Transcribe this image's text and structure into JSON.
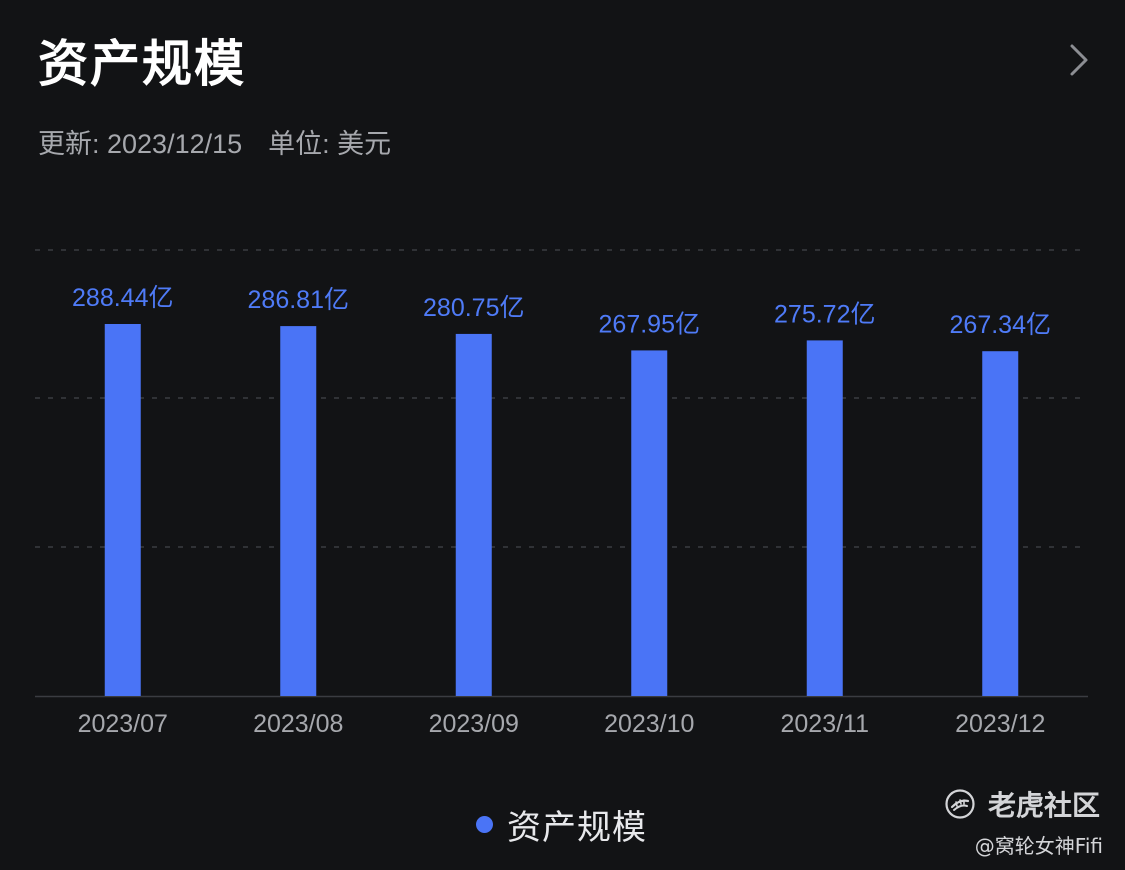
{
  "header": {
    "title": "资产规模",
    "update_label": "更新: 2023/12/15",
    "unit_label": "单位: 美元",
    "chevron_icon": "chevron-right-icon"
  },
  "colors": {
    "background": "#121315",
    "bar": "#4a74f6",
    "value_label": "#4f7bf7",
    "tick_label": "#a6a8ad",
    "gridline": "#3a3c41"
  },
  "chart_data": {
    "type": "bar",
    "title": "资产规模",
    "categories": [
      "2023/07",
      "2023/08",
      "2023/09",
      "2023/10",
      "2023/11",
      "2023/12"
    ],
    "values": [
      288.44,
      286.81,
      280.75,
      267.95,
      275.72,
      267.34
    ],
    "value_labels": [
      "288.44亿",
      "286.81亿",
      "280.75亿",
      "267.95亿",
      "275.72亿",
      "267.34亿"
    ],
    "unit": "亿",
    "xlabel": "",
    "ylabel": "",
    "ylim": [
      0,
      300
    ],
    "grid": true,
    "legend": [
      {
        "name": "资产规模",
        "position": "bottom-center"
      }
    ]
  },
  "legend": {
    "label": "资产规模"
  },
  "watermark": {
    "brand": "老虎社区",
    "user": "@窝轮女神Fifi",
    "logo_icon": "tiger-logo-icon"
  }
}
